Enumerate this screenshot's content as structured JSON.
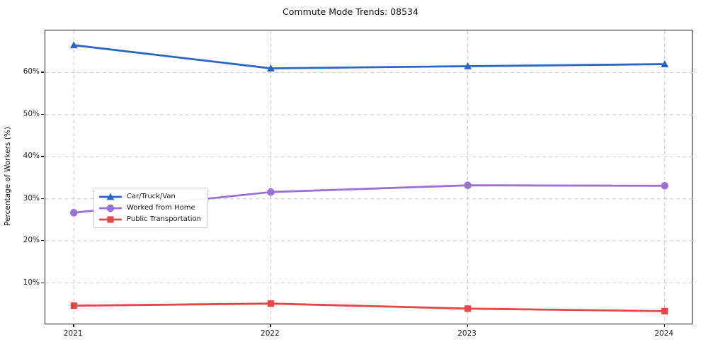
{
  "title": "Commute Mode Trends: 08534",
  "chart_data": {
    "type": "line",
    "title": "Commute Mode Trends: 08534",
    "xlabel": "",
    "ylabel": "Percentage of Workers (%)",
    "categories": [
      "2021",
      "2022",
      "2023",
      "2024"
    ],
    "series": [
      {
        "name": "Car/Truck/Van",
        "values": [
          66.5,
          61.0,
          61.5,
          62.0
        ],
        "color": "#2b67c2",
        "marker": "triangle"
      },
      {
        "name": "Worked from Home",
        "values": [
          26.7,
          31.6,
          33.2,
          33.1
        ],
        "color": "#9b71d9",
        "marker": "circle"
      },
      {
        "name": "Public Transportation",
        "values": [
          4.6,
          5.1,
          3.9,
          3.3
        ],
        "color": "#e34747",
        "marker": "square"
      }
    ],
    "ylim": [
      0,
      70
    ],
    "yticks": [
      10,
      20,
      30,
      40,
      50,
      60
    ],
    "ytick_labels": [
      "10%",
      "20%",
      "30%",
      "40%",
      "50%",
      "60%"
    ],
    "grid": true,
    "grid_color": "#c9c9c9",
    "legend_position": "center-left",
    "spine_color": "#1a1a1a"
  }
}
